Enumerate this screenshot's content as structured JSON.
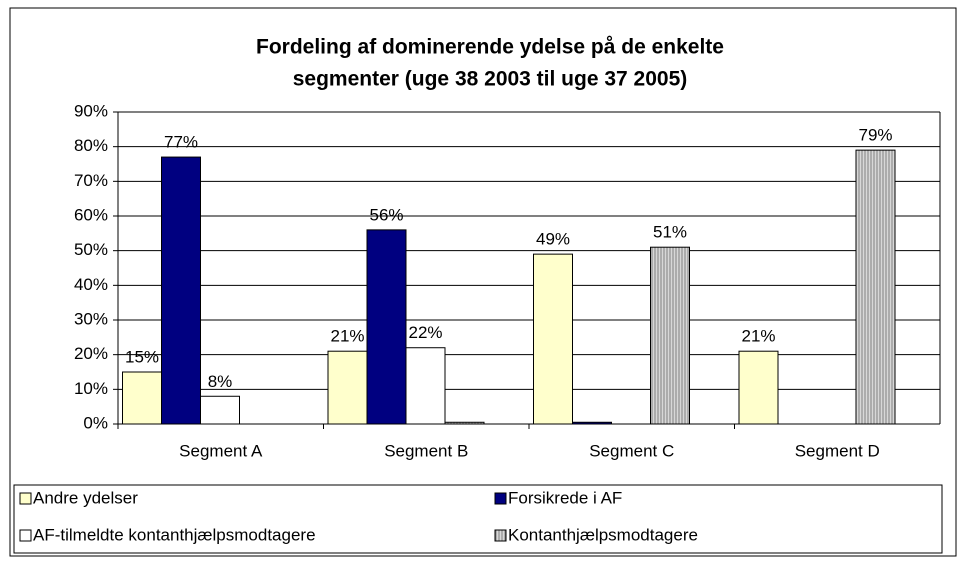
{
  "chart_data": {
    "type": "bar",
    "title": [
      "Fordeling af dominerende ydelse på de enkelte",
      "segmenter (uge 38 2003 til uge 37 2005)"
    ],
    "categories": [
      "Segment A",
      "Segment B",
      "Segment C",
      "Segment D"
    ],
    "series": [
      {
        "name": "Andre ydelser",
        "color": "#ffffcc",
        "values": [
          15,
          21,
          49,
          21
        ],
        "value_labels": [
          "15%",
          "21%",
          "49%",
          "21%"
        ]
      },
      {
        "name": "Forsikrede i AF",
        "color": "#000080",
        "values": [
          77,
          56,
          0.5,
          0
        ],
        "value_labels": [
          "77%",
          "56%",
          null,
          null
        ]
      },
      {
        "name": "AF-tilmeldte kontanthjælpsmodtagere",
        "color": "#ffffff",
        "values": [
          8,
          22,
          0,
          0
        ],
        "value_labels": [
          "8%",
          "22%",
          null,
          null
        ]
      },
      {
        "name": "Kontanthjælpsmodtagere",
        "color": "pattern",
        "values": [
          0,
          0.5,
          51,
          79
        ],
        "value_labels": [
          null,
          null,
          "51%",
          "79%"
        ]
      }
    ],
    "ylim": [
      0,
      90
    ],
    "yticks": [
      {
        "value": 0,
        "label": "0%"
      },
      {
        "value": 10,
        "label": "10%"
      },
      {
        "value": 20,
        "label": "20%"
      },
      {
        "value": 30,
        "label": "30%"
      },
      {
        "value": 40,
        "label": "40%"
      },
      {
        "value": 50,
        "label": "50%"
      },
      {
        "value": 60,
        "label": "60%"
      },
      {
        "value": 70,
        "label": "70%"
      },
      {
        "value": 80,
        "label": "80%"
      },
      {
        "value": 90,
        "label": "90%"
      }
    ],
    "grid": true,
    "legend": "bottom"
  }
}
